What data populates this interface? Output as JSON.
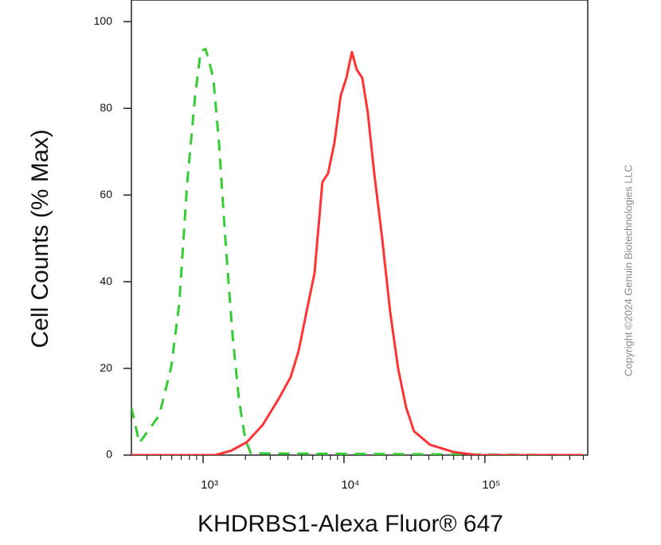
{
  "chart_data": {
    "type": "line",
    "xlabel": "KHDRBS1-Alexa Fluor® 647",
    "ylabel": "Cell Counts (% Max)",
    "annotation": "Copyright ©2024 Genuin Biotechnologies LLC",
    "xscale": "log",
    "xlim": [
      310,
      537000
    ],
    "ylim": [
      0,
      105
    ],
    "xticks": [
      {
        "value": 1000,
        "label": "10³"
      },
      {
        "value": 10000,
        "label": "10⁴"
      },
      {
        "value": 100000,
        "label": "10⁵"
      }
    ],
    "yticks": [
      0,
      20,
      40,
      60,
      80,
      100
    ],
    "series": [
      {
        "color": "#33cc33",
        "dashed": true,
        "x": [
          310,
          353,
          489,
          594,
          678,
          771,
          879,
          962,
          1040,
          1096,
          1184,
          1297,
          1439,
          1619,
          1795,
          1991,
          2183,
          500000
        ],
        "values": [
          11,
          2.8,
          9.2,
          20.3,
          35,
          62.7,
          83,
          93.2,
          93.7,
          91.3,
          86.7,
          72,
          49.8,
          27.7,
          12.9,
          3.7,
          0.4,
          0
        ]
      },
      {
        "color": "#ff3333",
        "dashed": false,
        "x": [
          310,
          1216,
          1578,
          2047,
          2655,
          3443,
          4182,
          4762,
          5420,
          6180,
          7030,
          7710,
          8550,
          9490,
          10400,
          11380,
          12300,
          13490,
          14760,
          16400,
          18670,
          21280,
          24220,
          27600,
          31410,
          40740,
          60230,
          88900,
          500000
        ],
        "values": [
          0,
          0,
          1,
          3,
          7,
          13,
          18,
          24,
          33,
          42,
          63,
          65,
          72,
          83,
          87,
          93,
          89,
          87,
          79,
          65,
          50,
          33,
          20,
          11,
          5.5,
          2.4,
          0.7,
          0,
          0
        ]
      }
    ]
  }
}
